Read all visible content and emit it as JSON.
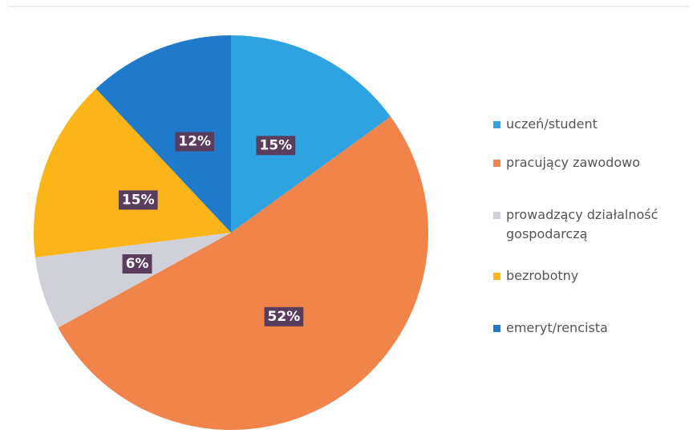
{
  "chart_data": {
    "type": "pie",
    "categories": [
      "uczeń/student",
      "pracujący zawodowo",
      "prowadzący działalność gospodarczą",
      "bezrobotny",
      "emeryt/rencista"
    ],
    "values": [
      15,
      52,
      6,
      15,
      12
    ],
    "value_labels": [
      "15%",
      "52%",
      "6%",
      "15%",
      "12%"
    ],
    "colors": [
      "#2ea3e0",
      "#f0844a",
      "#cfd0d8",
      "#fbb518",
      "#1f7acb"
    ],
    "legend": "right"
  }
}
